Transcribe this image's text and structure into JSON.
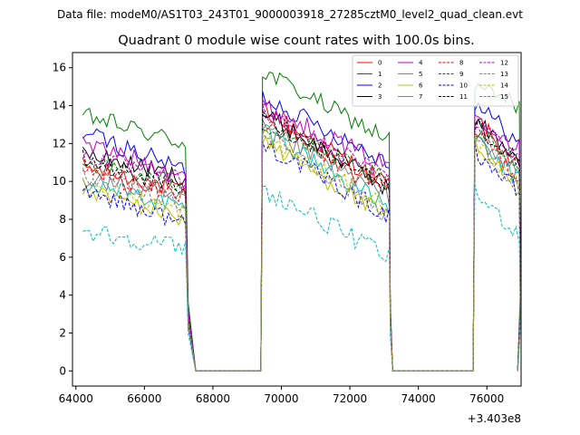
{
  "figure": {
    "suptitle": "Data file: modeM0/AS1T03_243T01_9000003918_27285cztM0_level2_quad_clean.evt"
  },
  "chart_data": {
    "type": "line",
    "title": "Quadrant 0 module wise count rates with 100.0s bins.",
    "xlabel": "",
    "ylabel": "",
    "x_offset_label": "+3.403e8",
    "xlim": [
      63900,
      77000
    ],
    "ylim": [
      -0.8,
      16.8
    ],
    "xticks": [
      64000,
      66000,
      68000,
      70000,
      72000,
      74000,
      76000
    ],
    "xtick_labels": [
      "64000",
      "66000",
      "68000",
      "70000",
      "72000",
      "74000",
      "76000"
    ],
    "yticks": [
      0,
      2,
      4,
      6,
      8,
      10,
      12,
      14,
      16
    ],
    "ytick_labels": [
      "0",
      "2",
      "4",
      "6",
      "8",
      "10",
      "12",
      "14",
      "16"
    ],
    "legend_position": "top-right",
    "segments": [
      {
        "start": 64200,
        "end": 67200,
        "drop_end": 67500
      },
      {
        "start": 69450,
        "end": 73100,
        "drop_end": 73250
      },
      {
        "start": 75650,
        "end": 76900,
        "drop_end": 76900
      }
    ],
    "gap_zero": [
      [
        67500,
        69400
      ],
      [
        73250,
        75600
      ]
    ],
    "series": [
      {
        "name": "0",
        "color": "#ff0000",
        "dash": "solid",
        "seg_levels": [
          [
            10.8,
            9.4
          ],
          [
            13.8,
            9.8
          ],
          [
            13.4,
            10.6
          ]
        ]
      },
      {
        "name": "1",
        "color": "#008000",
        "dash": "solid",
        "seg_levels": [
          [
            13.5,
            12.0
          ],
          [
            15.8,
            12.2
          ],
          [
            15.0,
            14.0
          ]
        ]
      },
      {
        "name": "2",
        "color": "#0000ff",
        "dash": "solid",
        "seg_levels": [
          [
            12.6,
            10.6
          ],
          [
            14.5,
            11.0
          ],
          [
            14.2,
            12.0
          ]
        ]
      },
      {
        "name": "3",
        "color": "#000000",
        "dash": "solid",
        "seg_levels": [
          [
            11.5,
            10.2
          ],
          [
            13.6,
            9.6
          ],
          [
            13.2,
            11.2
          ]
        ]
      },
      {
        "name": "4",
        "color": "#bf00bf",
        "dash": "solid",
        "seg_levels": [
          [
            12.0,
            10.4
          ],
          [
            14.0,
            10.8
          ],
          [
            13.6,
            11.8
          ]
        ]
      },
      {
        "name": "5",
        "color": "#00bfbf",
        "dash": "solid",
        "seg_levels": [
          [
            10.0,
            8.6
          ],
          [
            12.8,
            8.6
          ],
          [
            12.2,
            10.0
          ]
        ]
      },
      {
        "name": "6",
        "color": "#bfbf00",
        "dash": "solid",
        "seg_levels": [
          [
            9.6,
            8.0
          ],
          [
            12.2,
            8.0
          ],
          [
            11.8,
            9.6
          ]
        ]
      },
      {
        "name": "7",
        "color": "#808080",
        "dash": "solid",
        "seg_levels": [
          [
            10.2,
            9.0
          ],
          [
            12.8,
            9.2
          ],
          [
            12.4,
            10.4
          ]
        ]
      },
      {
        "name": "8",
        "color": "#ff0000",
        "dash": "dashed",
        "seg_levels": [
          [
            10.6,
            9.2
          ],
          [
            13.2,
            9.4
          ],
          [
            12.8,
            10.2
          ]
        ]
      },
      {
        "name": "9",
        "color": "#008000",
        "dash": "dashed",
        "seg_levels": [
          [
            11.0,
            9.8
          ],
          [
            13.0,
            10.0
          ],
          [
            12.6,
            11.0
          ]
        ]
      },
      {
        "name": "10",
        "color": "#0000ff",
        "dash": "dashed",
        "seg_levels": [
          [
            9.6,
            7.8
          ],
          [
            12.0,
            8.2
          ],
          [
            11.6,
            9.4
          ]
        ]
      },
      {
        "name": "11",
        "color": "#000000",
        "dash": "dashed",
        "seg_levels": [
          [
            11.2,
            9.6
          ],
          [
            13.4,
            9.8
          ],
          [
            13.0,
            11.0
          ]
        ]
      },
      {
        "name": "12",
        "color": "#bf00bf",
        "dash": "dashed",
        "seg_levels": [
          [
            11.4,
            10.0
          ],
          [
            13.6,
            10.2
          ],
          [
            13.2,
            11.4
          ]
        ]
      },
      {
        "name": "13",
        "color": "#00bfbf",
        "dash": "dashed",
        "seg_levels": [
          [
            7.4,
            6.5
          ],
          [
            9.6,
            6.0
          ],
          [
            9.4,
            7.2
          ]
        ]
      },
      {
        "name": "14",
        "color": "#bfbf00",
        "dash": "dashed",
        "seg_levels": [
          [
            9.9,
            8.4
          ],
          [
            12.4,
            8.6
          ],
          [
            12.0,
            9.8
          ]
        ]
      },
      {
        "name": "15",
        "color": "#808080",
        "dash": "dashed",
        "seg_levels": [
          [
            10.4,
            8.8
          ],
          [
            12.6,
            8.2
          ],
          [
            12.2,
            9.6
          ]
        ]
      }
    ]
  }
}
